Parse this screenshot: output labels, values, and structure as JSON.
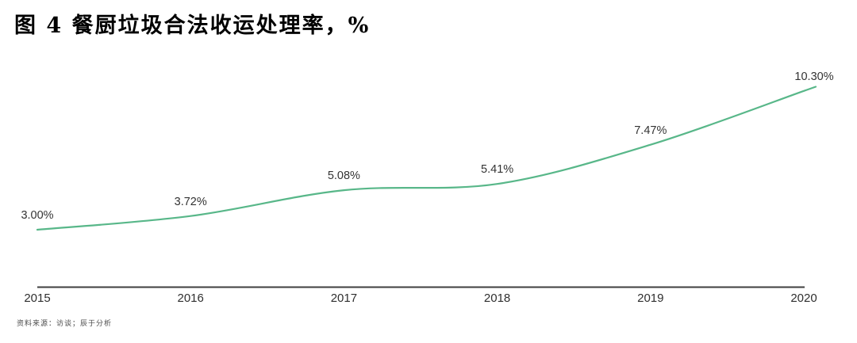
{
  "title": "图 4 餐厨垃圾合法收运处理率，%",
  "source_note": "资料来源：访谈；辰于分析",
  "colors": {
    "line": "#58b789",
    "axis": "#3f3f3f",
    "label_text": "#333333",
    "title_text": "#000000",
    "source_text": "#4a4a4a",
    "background": "#ffffff"
  },
  "chart_data": {
    "type": "line",
    "title": "图 4 餐厨垃圾合法收运处理率，%",
    "categories": [
      "2015",
      "2016",
      "2017",
      "2018",
      "2019",
      "2020"
    ],
    "values": [
      3.0,
      3.72,
      5.08,
      5.41,
      7.47,
      10.3
    ],
    "point_labels": [
      "3.00%",
      "3.72%",
      "5.08%",
      "5.41%",
      "7.47%",
      "10.30%"
    ],
    "xlabel": "",
    "ylabel": "",
    "unit": "%",
    "ylim": [
      0,
      11
    ],
    "grid": false,
    "legend": "none",
    "line_style": "smooth",
    "markers": "none"
  }
}
